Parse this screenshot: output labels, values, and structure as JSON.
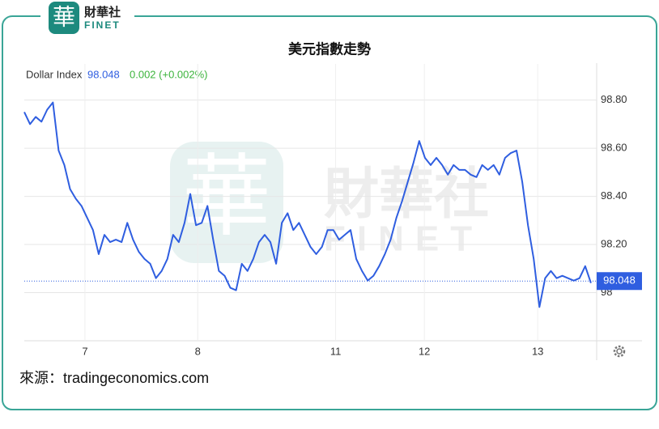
{
  "logo": {
    "mark": "華",
    "name": "財華社",
    "brand": "FINET"
  },
  "chart_data": {
    "type": "line",
    "title": "美元指數走勢",
    "legend_label": "Dollar Index",
    "last_value": 98.048,
    "change": "0.002 (+0.002%)",
    "x": [
      0,
      1,
      2,
      3,
      4,
      5,
      6,
      7,
      8,
      9,
      10,
      11,
      12,
      13,
      14,
      15,
      16,
      17,
      18,
      19,
      20,
      21,
      22,
      23,
      24,
      25,
      26,
      27,
      28,
      29,
      30,
      31,
      32,
      33,
      34,
      35,
      36,
      37,
      38,
      39,
      40,
      41,
      42,
      43,
      44,
      45,
      46,
      47,
      48,
      49,
      50,
      51,
      52,
      53,
      54,
      55,
      56,
      57,
      58,
      59,
      60,
      61,
      62,
      63,
      64,
      65,
      66,
      67,
      68,
      69,
      70,
      71,
      72,
      73,
      74,
      75,
      76,
      77,
      78,
      79,
      80,
      81,
      82,
      83,
      84,
      85,
      86,
      87,
      88,
      89,
      90,
      91,
      92,
      93,
      94,
      95,
      96,
      97,
      98,
      99
    ],
    "series": [
      {
        "name": "Dollar Index",
        "color": "#2f5ee0",
        "values": [
          98.75,
          98.7,
          98.73,
          98.71,
          98.76,
          98.79,
          98.59,
          98.53,
          98.43,
          98.39,
          98.36,
          98.31,
          98.26,
          98.16,
          98.24,
          98.21,
          98.22,
          98.21,
          98.29,
          98.22,
          98.17,
          98.14,
          98.12,
          98.06,
          98.09,
          98.14,
          98.24,
          98.21,
          98.29,
          98.41,
          98.28,
          98.29,
          98.36,
          98.22,
          98.09,
          98.07,
          98.02,
          98.01,
          98.12,
          98.09,
          98.14,
          98.21,
          98.24,
          98.21,
          98.12,
          98.29,
          98.33,
          98.26,
          98.29,
          98.24,
          98.19,
          98.16,
          98.19,
          98.26,
          98.26,
          98.22,
          98.24,
          98.26,
          98.14,
          98.09,
          98.05,
          98.07,
          98.11,
          98.16,
          98.22,
          98.31,
          98.38,
          98.46,
          98.54,
          98.63,
          98.56,
          98.53,
          98.56,
          98.53,
          98.49,
          98.53,
          98.51,
          98.51,
          98.49,
          98.48,
          98.53,
          98.51,
          98.53,
          98.49,
          98.56,
          98.58,
          98.59,
          98.46,
          98.28,
          98.14,
          97.94,
          98.06,
          98.09,
          98.06,
          98.07,
          98.06,
          98.05,
          98.06,
          98.11,
          98.04
        ]
      }
    ],
    "xlim": [
      0,
      100
    ],
    "xticks": [
      {
        "value": 10.6,
        "label": "7"
      },
      {
        "value": 30.3,
        "label": "8"
      },
      {
        "value": 54.4,
        "label": "11"
      },
      {
        "value": 69.9,
        "label": "12"
      },
      {
        "value": 89.7,
        "label": "13"
      }
    ],
    "ylim": [
      97.8,
      98.95
    ],
    "yticks": [
      98,
      {
        "value": 98.2,
        "label": "98.20"
      },
      {
        "value": 98.4,
        "label": "98.40"
      },
      {
        "value": 98.6,
        "label": "98.60"
      },
      {
        "value": 98.8,
        "label": "98.80"
      }
    ],
    "grid": true
  },
  "source": "來源：tradingeconomics.com"
}
